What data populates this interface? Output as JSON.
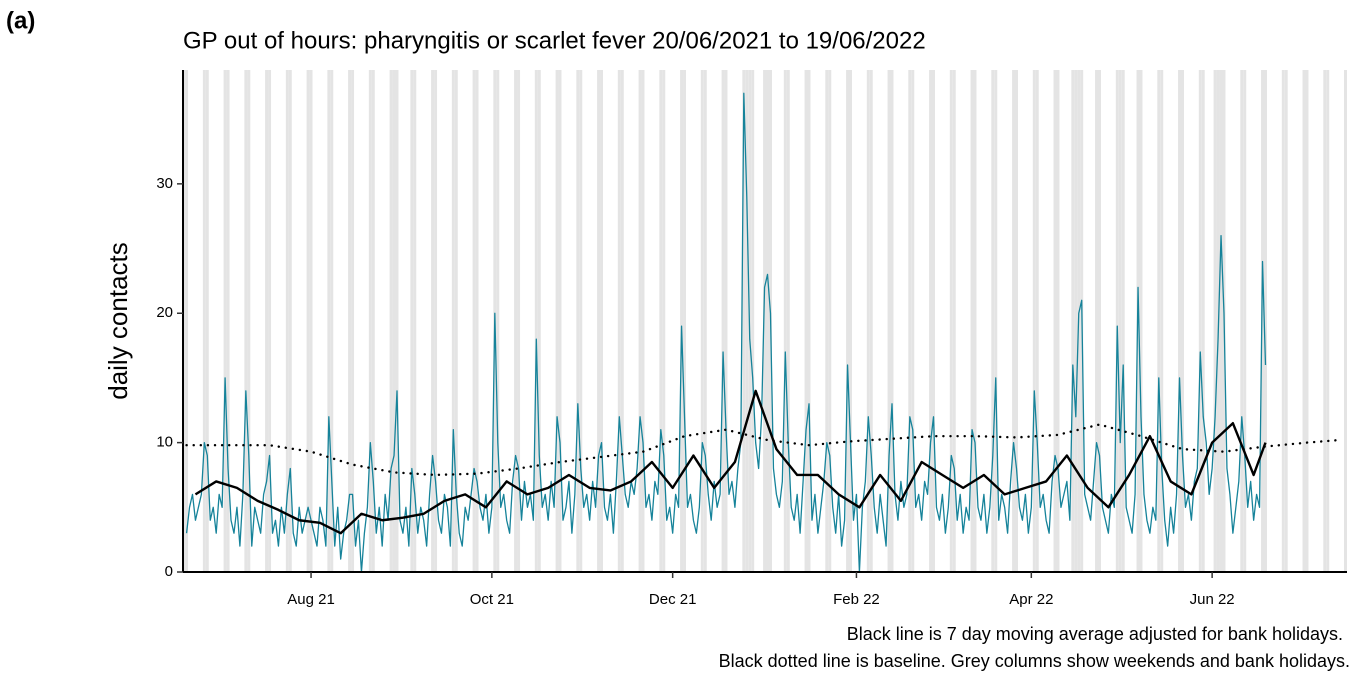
{
  "panel_label": "(a)",
  "chart_data": {
    "type": "line",
    "title": "GP out of hours: pharyngitis or scarlet fever 20/06/2021 to 19/06/2022",
    "y_label": "daily contacts",
    "notes": [
      "Black line is 7 day moving average adjusted for bank holidays.",
      "Black dotted line is baseline. Grey columns show weekends and bank holidays."
    ],
    "xlim": [
      -1.2,
      391.5
    ],
    "ylim": [
      0,
      38.8
    ],
    "xticks": [
      {
        "value": 42,
        "label": "Aug 21"
      },
      {
        "value": 103,
        "label": "Oct 21"
      },
      {
        "value": 164,
        "label": "Dec 21"
      },
      {
        "value": 226,
        "label": "Feb 22"
      },
      {
        "value": 285,
        "label": "Apr 22"
      },
      {
        "value": 346,
        "label": "Jun 22"
      }
    ],
    "yticks": [
      0,
      10,
      20,
      30
    ],
    "shade_color": "#e4e4e4",
    "shaded_days": [
      -1,
      0,
      6,
      7,
      13,
      14,
      20,
      21,
      27,
      28,
      34,
      35,
      41,
      42,
      48,
      49,
      55,
      56,
      62,
      63,
      69,
      70,
      76,
      77,
      83,
      84,
      90,
      91,
      97,
      98,
      104,
      105,
      111,
      112,
      118,
      119,
      125,
      126,
      132,
      133,
      139,
      140,
      146,
      147,
      153,
      154,
      160,
      161,
      167,
      168,
      174,
      175,
      181,
      182,
      188,
      189,
      195,
      196,
      202,
      203,
      209,
      210,
      216,
      217,
      223,
      224,
      230,
      231,
      237,
      238,
      244,
      245,
      251,
      252,
      258,
      259,
      265,
      266,
      272,
      273,
      279,
      280,
      286,
      287,
      293,
      294,
      300,
      301,
      307,
      308,
      314,
      315,
      321,
      322,
      328,
      329,
      335,
      336,
      342,
      343,
      349,
      350,
      356,
      357,
      363,
      364,
      370,
      371,
      377,
      378,
      384,
      385,
      391,
      71,
      190,
      191,
      197,
      299,
      302,
      316,
      347,
      348
    ],
    "series": [
      {
        "color": "#16839a",
        "width": 1.3,
        "style": "solid",
        "x": [
          0,
          1,
          2,
          3,
          4,
          5,
          6,
          7,
          8,
          9,
          10,
          11,
          12,
          13,
          14,
          15,
          16,
          17,
          18,
          19,
          20,
          21,
          22,
          23,
          24,
          25,
          26,
          27,
          28,
          29,
          30,
          31,
          32,
          33,
          34,
          35,
          36,
          37,
          38,
          39,
          40,
          41,
          42,
          43,
          44,
          45,
          46,
          47,
          48,
          49,
          50,
          51,
          52,
          53,
          54,
          55,
          56,
          57,
          58,
          59,
          60,
          61,
          62,
          63,
          64,
          65,
          66,
          67,
          68,
          69,
          70,
          71,
          72,
          73,
          74,
          75,
          76,
          77,
          78,
          79,
          80,
          81,
          82,
          83,
          84,
          85,
          86,
          87,
          88,
          89,
          90,
          91,
          92,
          93,
          94,
          95,
          96,
          97,
          98,
          99,
          100,
          101,
          102,
          103,
          104,
          105,
          106,
          107,
          108,
          109,
          110,
          111,
          112,
          113,
          114,
          115,
          116,
          117,
          118,
          119,
          120,
          121,
          122,
          123,
          124,
          125,
          126,
          127,
          128,
          129,
          130,
          131,
          132,
          133,
          134,
          135,
          136,
          137,
          138,
          139,
          140,
          141,
          142,
          143,
          144,
          145,
          146,
          147,
          148,
          149,
          150,
          151,
          152,
          153,
          154,
          155,
          156,
          157,
          158,
          159,
          160,
          161,
          162,
          163,
          164,
          165,
          166,
          167,
          168,
          169,
          170,
          171,
          172,
          173,
          174,
          175,
          176,
          177,
          178,
          179,
          180,
          181,
          182,
          183,
          184,
          185,
          186,
          187,
          188,
          189,
          190,
          191,
          192,
          193,
          194,
          195,
          196,
          197,
          198,
          199,
          200,
          201,
          202,
          203,
          204,
          205,
          206,
          207,
          208,
          209,
          210,
          211,
          212,
          213,
          214,
          215,
          216,
          217,
          218,
          219,
          220,
          221,
          222,
          223,
          224,
          225,
          226,
          227,
          228,
          229,
          230,
          231,
          232,
          233,
          234,
          235,
          236,
          237,
          238,
          239,
          240,
          241,
          242,
          243,
          244,
          245,
          246,
          247,
          248,
          249,
          250,
          251,
          252,
          253,
          254,
          255,
          256,
          257,
          258,
          259,
          260,
          261,
          262,
          263,
          264,
          265,
          266,
          267,
          268,
          269,
          270,
          271,
          272,
          273,
          274,
          275,
          276,
          277,
          278,
          279,
          280,
          281,
          282,
          283,
          284,
          285,
          286,
          287,
          288,
          289,
          290,
          291,
          292,
          293,
          294,
          295,
          296,
          297,
          298,
          299,
          300,
          301,
          302,
          303,
          304,
          305,
          306,
          307,
          308,
          309,
          310,
          311,
          312,
          313,
          314,
          315,
          316,
          317,
          318,
          319,
          320,
          321,
          322,
          323,
          324,
          325,
          326,
          327,
          328,
          329,
          330,
          331,
          332,
          333,
          334,
          335,
          336,
          337,
          338,
          339,
          340,
          341,
          342,
          343,
          344,
          345,
          346,
          347,
          348,
          349,
          350,
          351,
          352,
          353,
          354,
          355,
          356,
          357,
          358,
          359,
          360,
          361,
          362,
          363,
          364
        ],
        "values": [
          3,
          5,
          6,
          4,
          5,
          6,
          10,
          9,
          4,
          5,
          3,
          6,
          5,
          15,
          8,
          4,
          3,
          5,
          2,
          6,
          14,
          9,
          2,
          5,
          4,
          3,
          6,
          7,
          9,
          3,
          4,
          2,
          5,
          3,
          6,
          8,
          3,
          2,
          5,
          3,
          4,
          5,
          4,
          3,
          2,
          5,
          4,
          2,
          12,
          7,
          2,
          5,
          1,
          3,
          4,
          6,
          6,
          2,
          4,
          0,
          3,
          5,
          10,
          7,
          3,
          5,
          2,
          6,
          4,
          8,
          9,
          14,
          4,
          3,
          5,
          2,
          8,
          6,
          3,
          5,
          4,
          2,
          6,
          9,
          7,
          4,
          3,
          6,
          5,
          2,
          11,
          6,
          3,
          2,
          5,
          4,
          6,
          8,
          7,
          5,
          4,
          6,
          3,
          5,
          20,
          10,
          5,
          6,
          4,
          3,
          7,
          9,
          8,
          4,
          7,
          5,
          6,
          4,
          18,
          9,
          5,
          6,
          4,
          7,
          5,
          12,
          10,
          4,
          5,
          7,
          3,
          6,
          13,
          8,
          5,
          6,
          4,
          7,
          5,
          9,
          10,
          5,
          4,
          6,
          3,
          7,
          12,
          9,
          6,
          5,
          7,
          6,
          8,
          12,
          10,
          5,
          6,
          4,
          7,
          6,
          11,
          9,
          4,
          5,
          3,
          6,
          5,
          19,
          12,
          5,
          6,
          4,
          3,
          5,
          10,
          9,
          6,
          4,
          7,
          5,
          6,
          17,
          11,
          6,
          7,
          5,
          8,
          10,
          37,
          29,
          18,
          15,
          10,
          8,
          12,
          22,
          23,
          20,
          8,
          6,
          5,
          7,
          17,
          10,
          5,
          4,
          6,
          3,
          7,
          11,
          13,
          4,
          6,
          3,
          5,
          7,
          10,
          9,
          5,
          3,
          6,
          2,
          4,
          16,
          10,
          4,
          6,
          0,
          5,
          7,
          12,
          9,
          5,
          3,
          6,
          4,
          2,
          9,
          13,
          6,
          4,
          7,
          5,
          6,
          12,
          11,
          5,
          6,
          4,
          7,
          6,
          10,
          12,
          5,
          4,
          6,
          3,
          5,
          9,
          8,
          4,
          6,
          3,
          5,
          4,
          11,
          10,
          5,
          4,
          6,
          3,
          5,
          9,
          15,
          4,
          6,
          5,
          3,
          7,
          10,
          8,
          5,
          4,
          6,
          3,
          5,
          14,
          10,
          5,
          6,
          4,
          3,
          7,
          9,
          8,
          5,
          6,
          7,
          4,
          16,
          12,
          20,
          21,
          6,
          5,
          4,
          7,
          10,
          9,
          5,
          4,
          3,
          6,
          5,
          19,
          10,
          16,
          5,
          4,
          3,
          6,
          22,
          12,
          6,
          4,
          3,
          5,
          4,
          15,
          8,
          4,
          2,
          5,
          3,
          6,
          15,
          9,
          5,
          6,
          4,
          7,
          8,
          17,
          12,
          10,
          6,
          8,
          12,
          18,
          26,
          20,
          8,
          6,
          3,
          5,
          7,
          12,
          9,
          5,
          7,
          4,
          6,
          5,
          24,
          16
        ]
      },
      {
        "color": "#000000",
        "width": 2.4,
        "style": "solid",
        "x": [
          3,
          10,
          17,
          24,
          31,
          38,
          45,
          52,
          59,
          66,
          73,
          80,
          87,
          94,
          101,
          108,
          115,
          122,
          129,
          136,
          143,
          150,
          157,
          164,
          171,
          178,
          185,
          192,
          199,
          206,
          213,
          220,
          227,
          234,
          241,
          248,
          255,
          262,
          269,
          276,
          283,
          290,
          297,
          304,
          311,
          318,
          325,
          332,
          339,
          346,
          353,
          360,
          364
        ],
        "values": [
          6,
          7,
          6.5,
          5.5,
          4.8,
          4,
          3.8,
          3,
          4.5,
          4,
          4.2,
          4.5,
          5.5,
          6,
          5,
          7,
          6,
          6.5,
          7.5,
          6.5,
          6.3,
          7,
          8.5,
          6.5,
          9,
          6.5,
          8.5,
          14,
          9.5,
          7.5,
          7.5,
          6,
          5,
          7.5,
          5.5,
          8.5,
          7.5,
          6.5,
          7.5,
          6,
          6.5,
          7,
          9,
          6.5,
          5,
          7.5,
          10.5,
          7,
          6,
          10,
          11.5,
          7.5,
          10
        ]
      },
      {
        "color": "#000000",
        "width": 2.4,
        "style": "dotted",
        "x": [
          0,
          14,
          28,
          42,
          56,
          70,
          84,
          98,
          112,
          126,
          140,
          154,
          168,
          182,
          196,
          210,
          224,
          238,
          252,
          266,
          280,
          294,
          308,
          322,
          336,
          350,
          364,
          378,
          389
        ],
        "values": [
          9.8,
          9.8,
          9.8,
          9.3,
          8.3,
          7.7,
          7.5,
          7.6,
          8,
          8.5,
          8.9,
          9.3,
          10.5,
          11,
          10.2,
          9.8,
          10.1,
          10.3,
          10.5,
          10.5,
          10.4,
          10.6,
          11.4,
          10.5,
          9.5,
          9.3,
          9.7,
          10,
          10.2
        ]
      }
    ]
  }
}
